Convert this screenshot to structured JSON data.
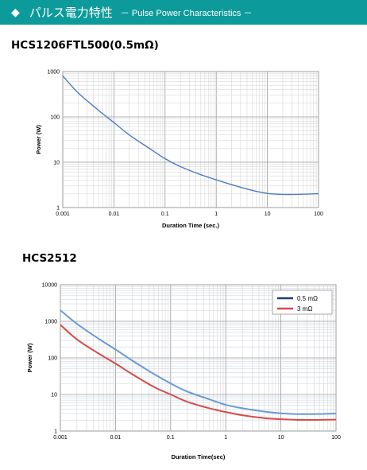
{
  "header": {
    "bullet": "◆",
    "title_jp": "パルス電力特性",
    "title_en": "－ Pulse Power Characteristics －"
  },
  "chart_data": [
    {
      "type": "line",
      "title": "HCS1206FTL500(0.5mΩ)",
      "xlabel": "Duration Time (sec.)",
      "ylabel": "Power (W)",
      "xscale": "log",
      "yscale": "log",
      "xlim": [
        0.001,
        100
      ],
      "ylim": [
        1,
        1000
      ],
      "xticks": [
        "0.001",
        "0.01",
        "0.1",
        "1",
        "10",
        "100"
      ],
      "yticks": [
        "1",
        "10",
        "100",
        "1000"
      ],
      "grid": true,
      "colors": {
        "line": "#4a7cc0"
      },
      "series": [
        {
          "x": [
            0.001,
            0.002,
            0.005,
            0.01,
            0.02,
            0.05,
            0.1,
            0.2,
            0.5,
            1,
            2,
            5,
            10,
            20,
            50,
            100
          ],
          "y": [
            800,
            340,
            140,
            75,
            40,
            20,
            12,
            8,
            5.3,
            4.1,
            3.2,
            2.4,
            2.05,
            1.95,
            1.97,
            2.02
          ]
        }
      ]
    },
    {
      "type": "line",
      "title": "HCS2512",
      "xlabel": "Duration Time(sec)",
      "ylabel": "Power (W)",
      "xscale": "log",
      "yscale": "log",
      "xlim": [
        0.001,
        100
      ],
      "ylim": [
        1,
        10000
      ],
      "xticks": [
        "0.001",
        "0.01",
        "0.1",
        "1",
        "10",
        "100"
      ],
      "yticks": [
        "1",
        "10",
        "100",
        "1000",
        "10000"
      ],
      "grid": true,
      "legend": "top-right",
      "series": [
        {
          "name": "0.5 mΩ",
          "color": "#6a9ad8",
          "legend_color": "#1f3c6e",
          "x": [
            0.001,
            0.002,
            0.005,
            0.01,
            0.02,
            0.05,
            0.1,
            0.2,
            0.5,
            1,
            2,
            5,
            10,
            20,
            50,
            100
          ],
          "y": [
            2000,
            850,
            330,
            170,
            85,
            36,
            20,
            12,
            7.4,
            5.2,
            4.2,
            3.4,
            3.05,
            2.9,
            2.92,
            3.0
          ]
        },
        {
          "name": "3 mΩ",
          "color": "#d94a4a",
          "legend_color": "#d94a4a",
          "x": [
            0.001,
            0.002,
            0.005,
            0.01,
            0.02,
            0.05,
            0.1,
            0.2,
            0.5,
            1,
            2,
            5,
            10,
            20,
            50,
            100
          ],
          "y": [
            800,
            320,
            130,
            70,
            36,
            16,
            10,
            6.3,
            4.2,
            3.3,
            2.7,
            2.25,
            2.1,
            2.02,
            2.02,
            2.05
          ]
        }
      ]
    }
  ]
}
